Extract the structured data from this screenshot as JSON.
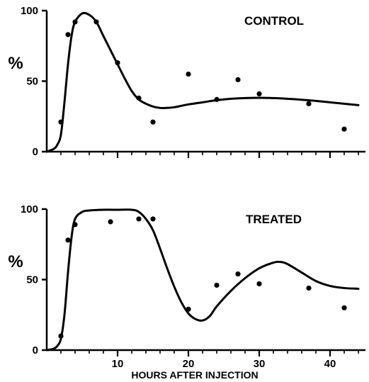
{
  "chart_data": [
    {
      "type": "line",
      "panel_label": "CONTROL",
      "ylabel": "%",
      "xlim": [
        0,
        45
      ],
      "ylim": [
        0,
        100
      ],
      "x_ticks": [
        10,
        20,
        30,
        40
      ],
      "x_ticks_labeled": false,
      "y_ticks": [
        0,
        50,
        100
      ],
      "y_tick_labels": [
        "0",
        "50",
        "100"
      ],
      "series": [
        {
          "style": "points",
          "x": [
            2,
            3,
            4,
            7,
            10,
            13,
            15,
            20,
            24,
            27,
            30,
            37,
            42
          ],
          "y": [
            21,
            83,
            92,
            92,
            63,
            38,
            21,
            55,
            37,
            51,
            41,
            34,
            16
          ]
        },
        {
          "style": "curve",
          "x": [
            0,
            1,
            1.5,
            2,
            2.5,
            3,
            3.5,
            4,
            5,
            6,
            7,
            8,
            9,
            10,
            11,
            12,
            13,
            14,
            15,
            16,
            17,
            18,
            19,
            20,
            22,
            24,
            26,
            28,
            30,
            32,
            34,
            36,
            38,
            40,
            42,
            44
          ],
          "y": [
            0,
            2,
            5,
            12,
            35,
            62,
            82,
            92,
            98,
            97,
            92,
            82,
            72,
            62,
            52,
            43,
            37,
            34,
            32,
            31,
            31,
            31.5,
            32.5,
            33.5,
            35,
            36.5,
            37.5,
            38,
            38.2,
            38,
            37.5,
            36.8,
            36,
            35,
            34,
            33
          ]
        }
      ]
    },
    {
      "type": "line",
      "panel_label": "TREATED",
      "ylabel": "%",
      "xlabel": "HOURS AFTER INJECTION",
      "xlim": [
        0,
        45
      ],
      "ylim": [
        0,
        100
      ],
      "x_ticks": [
        10,
        20,
        30,
        40
      ],
      "x_tick_labels": [
        "10",
        "20",
        "30",
        "40"
      ],
      "y_ticks": [
        0,
        50,
        100
      ],
      "y_tick_labels": [
        "0",
        "50",
        "100"
      ],
      "series": [
        {
          "style": "points",
          "x": [
            2,
            3,
            4,
            9,
            13,
            15,
            20,
            24,
            27,
            30,
            37,
            42
          ],
          "y": [
            10,
            78,
            89,
            91,
            93,
            93,
            29,
            46,
            54,
            47,
            44,
            30
          ]
        },
        {
          "style": "curve",
          "x": [
            0,
            1,
            1.5,
            2,
            2.5,
            3,
            3.5,
            4,
            5,
            6,
            8,
            10,
            12,
            13,
            14,
            15,
            16,
            17,
            18,
            19,
            20,
            21,
            22,
            23,
            24,
            26,
            28,
            30,
            32,
            33,
            34,
            36,
            38,
            40,
            42,
            44
          ],
          "y": [
            0,
            1,
            3,
            8,
            25,
            55,
            80,
            93,
            98,
            99,
            99.5,
            99.5,
            99.5,
            98,
            93,
            85,
            72,
            58,
            45,
            34,
            26,
            22,
            21,
            24,
            31,
            42,
            51,
            58,
            62,
            62.5,
            61,
            55,
            49,
            45.5,
            44,
            43.5
          ]
        }
      ]
    }
  ]
}
